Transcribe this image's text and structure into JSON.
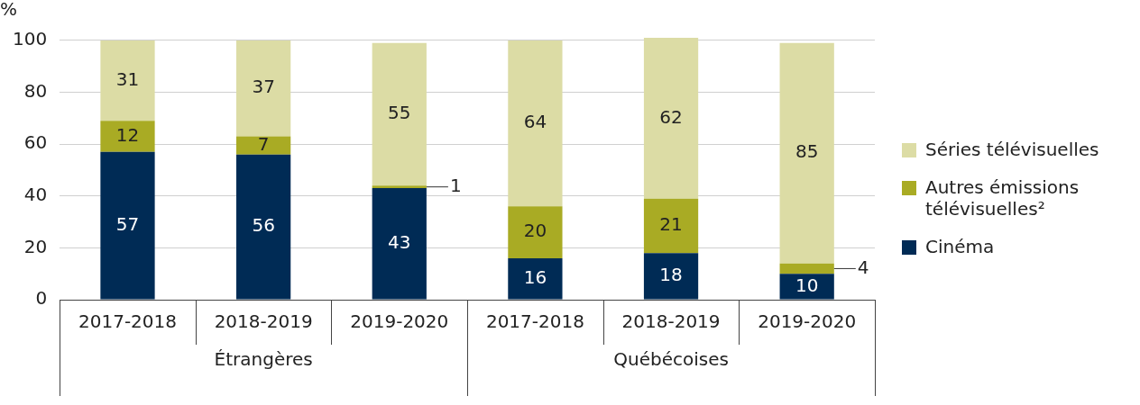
{
  "chart_data": {
    "type": "bar",
    "ylabel": "%",
    "categories": [
      "2017-2018",
      "2018-2019",
      "2019-2020",
      "2017-2018",
      "2018-2019",
      "2019-2020"
    ],
    "series": [
      {
        "name": "Cinéma",
        "color": "#002b55",
        "values": [
          57,
          56,
          43,
          16,
          18,
          10
        ]
      },
      {
        "name": "Autres émissions télévisuelles²",
        "color": "#a9ab24",
        "values": [
          12,
          7,
          1,
          20,
          21,
          4
        ]
      },
      {
        "name": "Séries télévisuelles",
        "color": "#dcdca5",
        "values": [
          31,
          37,
          55,
          64,
          62,
          85
        ]
      }
    ],
    "annotations": [
      "Étrangères",
      "Québécoises"
    ],
    "stacked": true,
    "ylim": [
      0,
      101
    ],
    "yticks": [
      0,
      20,
      40,
      60,
      80,
      100
    ],
    "grid": "y",
    "legend": "right",
    "data_labels": true
  }
}
